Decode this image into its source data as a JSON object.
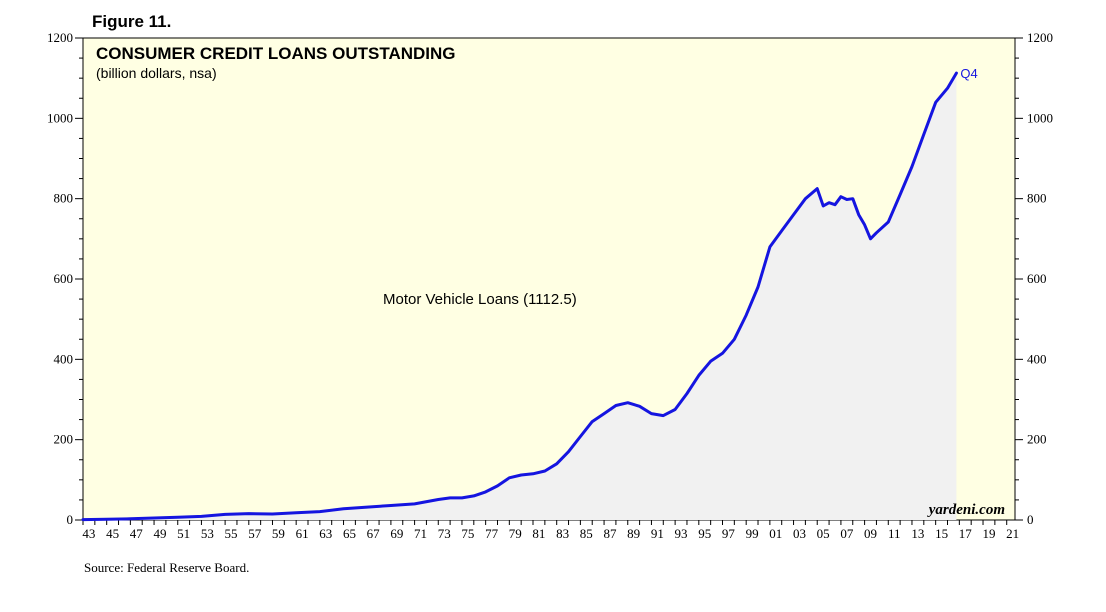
{
  "figure_label": "Figure 11.",
  "source": "Source: Federal Reserve Board.",
  "brand": "yardeni.com",
  "colors": {
    "plot_bg": "#ffffe3",
    "line": "#1515e0",
    "fill": "#f1f1f1"
  },
  "chart_data": {
    "type": "area",
    "title": "CONSUMER CREDIT LOANS OUTSTANDING",
    "subtitle": "(billion dollars, nsa)",
    "ylim": [
      0,
      1200
    ],
    "y_ticks": [
      "0",
      "200",
      "400",
      "600",
      "800",
      "1000",
      "1200"
    ],
    "xlim": [
      1943,
      2021.7
    ],
    "x_ticks": [
      "43",
      "45",
      "47",
      "49",
      "51",
      "53",
      "55",
      "57",
      "59",
      "61",
      "63",
      "65",
      "67",
      "69",
      "71",
      "73",
      "75",
      "77",
      "79",
      "81",
      "83",
      "85",
      "87",
      "89",
      "91",
      "93",
      "95",
      "97",
      "99",
      "01",
      "03",
      "05",
      "07",
      "09",
      "11",
      "13",
      "15",
      "17",
      "19",
      "21"
    ],
    "series": [
      {
        "name": "Motor Vehicle Loans (1112.5)",
        "end_label": "Q4",
        "x": [
          1943,
          1945,
          1947,
          1949,
          1951,
          1953,
          1955,
          1957,
          1959,
          1961,
          1963,
          1965,
          1967,
          1969,
          1971,
          1973,
          1974,
          1975,
          1976,
          1977,
          1978,
          1979,
          1980,
          1981,
          1982,
          1983,
          1984,
          1985,
          1986,
          1987,
          1988,
          1989,
          1990,
          1991,
          1992,
          1993,
          1994,
          1995,
          1996,
          1997,
          1998,
          1999,
          2000,
          2001,
          2002,
          2003,
          2004,
          2005,
          2005.5,
          2006,
          2006.5,
          2007,
          2007.5,
          2008,
          2008.5,
          2009,
          2009.5,
          2010,
          2011,
          2012,
          2013,
          2014,
          2015,
          2016,
          2016.75
        ],
        "values": [
          1,
          2,
          3,
          5,
          7,
          9,
          14,
          16,
          15,
          18,
          21,
          28,
          32,
          36,
          40,
          51,
          55,
          55,
          60,
          70,
          85,
          105,
          112,
          115,
          122,
          140,
          170,
          208,
          245,
          265,
          285,
          292,
          283,
          265,
          260,
          275,
          315,
          360,
          395,
          415,
          450,
          510,
          580,
          680,
          720,
          760,
          800,
          825,
          782,
          790,
          785,
          805,
          798,
          800,
          760,
          735,
          700,
          715,
          742,
          810,
          880,
          960,
          1040,
          1075,
          1112.5
        ]
      }
    ]
  }
}
